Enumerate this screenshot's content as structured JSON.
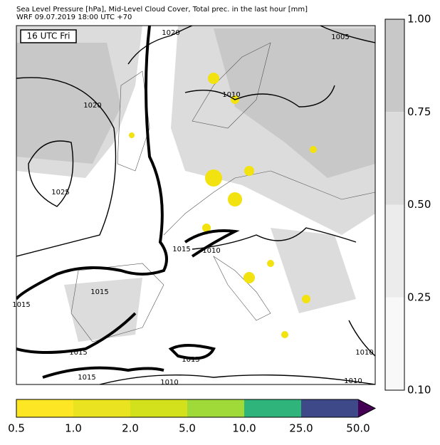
{
  "header": {
    "line1": "Sea Level Pressure [hPa], Mid-Level Cloud Cover, Total prec. in the last hour [mm]",
    "line2": "WRF 09.07.2019 18:00 UTC +70"
  },
  "time_label": "16 UTC Fri",
  "isobar_labels": [
    "1020",
    "1005",
    "1010",
    "1020",
    "1025",
    "1015",
    "1010",
    "1015",
    "1015",
    "1015",
    "1015",
    "1015",
    "1010",
    "1010",
    "1010"
  ],
  "cloud_colorbar": {
    "labels": [
      "1.00",
      "0.75",
      "0.50",
      "0.25",
      "0.10"
    ],
    "colors": [
      "#c8c8c8",
      "#dcdcdc",
      "#ececec",
      "#f8f8f8"
    ]
  },
  "precip_colorbar": {
    "labels": [
      "0.5",
      "1.0",
      "2.0",
      "5.0",
      "10.0",
      "25.0",
      "50.0"
    ],
    "colors": [
      "#fde725",
      "#e9e41f",
      "#d2e11b",
      "#a0da39",
      "#2fb47c",
      "#3e4989",
      "#440154"
    ]
  }
}
